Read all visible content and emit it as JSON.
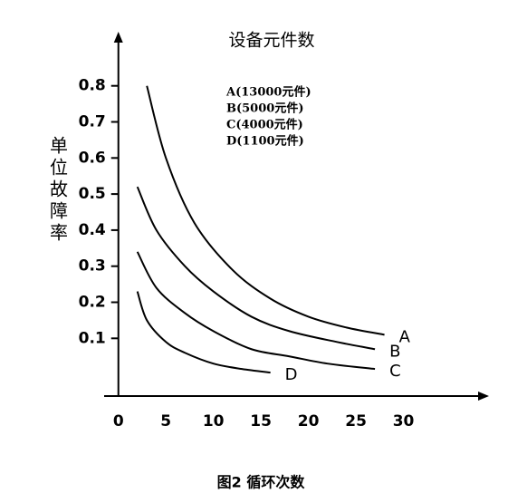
{
  "chart_data": {
    "type": "line",
    "title": "设备元件数",
    "ylabel": "单位故障率",
    "caption": "图2 循环次数",
    "color": "#000000",
    "xlim": [
      -1.5,
      39
    ],
    "ylim": [
      -0.06,
      0.95
    ],
    "xticks": [
      0,
      5,
      10,
      15,
      20,
      25,
      30
    ],
    "yticks": [
      0.1,
      0.2,
      0.3,
      0.4,
      0.5,
      0.6,
      0.7,
      0.8
    ],
    "series": [
      {
        "name": "A",
        "label": "A(13000元件)",
        "x": [
          3,
          5,
          8,
          12,
          16,
          20,
          24,
          28
        ],
        "values": [
          0.8,
          0.6,
          0.42,
          0.29,
          0.21,
          0.16,
          0.13,
          0.11
        ]
      },
      {
        "name": "B",
        "label": "B(5000元件)",
        "x": [
          2,
          4,
          7,
          10,
          14,
          18,
          23,
          27
        ],
        "values": [
          0.52,
          0.4,
          0.3,
          0.23,
          0.16,
          0.12,
          0.09,
          0.07
        ]
      },
      {
        "name": "C",
        "label": "C(4000元件)",
        "x": [
          2,
          4,
          7,
          10,
          14,
          18,
          22,
          27
        ],
        "values": [
          0.34,
          0.24,
          0.17,
          0.12,
          0.07,
          0.05,
          0.03,
          0.015
        ]
      },
      {
        "name": "D",
        "label": "D(1100元件)",
        "x": [
          2,
          3,
          5,
          7,
          10,
          13,
          16
        ],
        "values": [
          0.23,
          0.15,
          0.09,
          0.06,
          0.03,
          0.015,
          0.005
        ]
      }
    ]
  }
}
